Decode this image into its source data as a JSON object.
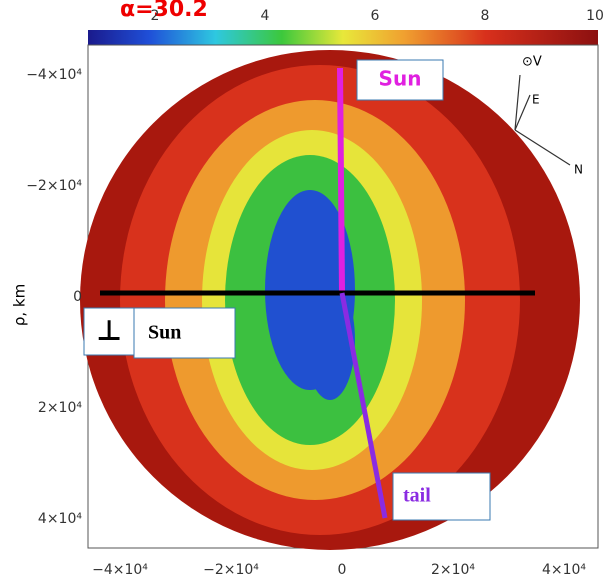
{
  "header": {
    "title": "α=30.2"
  },
  "colorbar": {
    "ticks": [
      "2",
      "4",
      "6",
      "8",
      "10"
    ]
  },
  "y_axis": {
    "label": "ρ, km",
    "ticks": [
      "−4×10⁴",
      "−2×10⁴",
      "0",
      "2×10⁴",
      "4×10⁴"
    ]
  },
  "x_axis": {
    "ticks": [
      "−4×10⁴",
      "−2×10⁴",
      "0",
      "2×10⁴",
      "4×10⁴"
    ]
  },
  "annotations": {
    "sun_top": "Sun",
    "perp_symbol": "⊥",
    "perp_sun": "Sun",
    "tail": "tail"
  },
  "compass": {
    "v": "⊙V",
    "e": "E",
    "n": "N"
  }
}
